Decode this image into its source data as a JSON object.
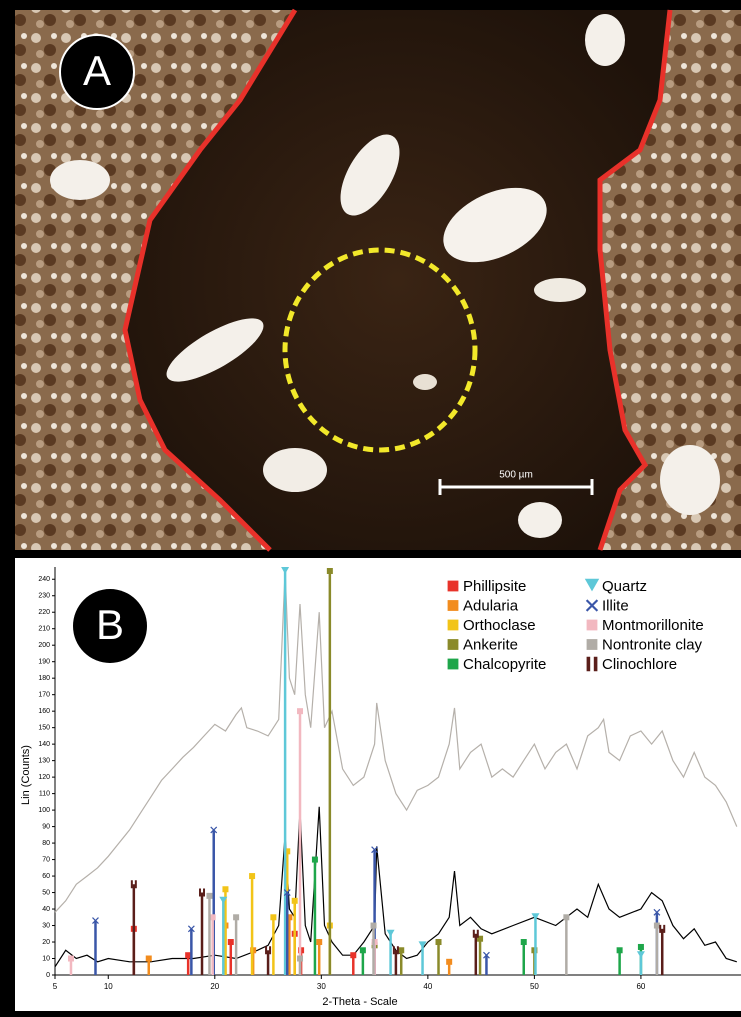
{
  "panels": [
    {
      "label": "A",
      "scale_bar": "500 µm"
    },
    {
      "label": "B"
    }
  ],
  "chart_data": {
    "type": "line",
    "x_label": "2-Theta - Scale",
    "y_label": "Lin (Counts)",
    "xlim": [
      5,
      69.3
    ],
    "ylim": [
      0,
      245
    ],
    "xticks": [
      5,
      10,
      20,
      30,
      40,
      50,
      60
    ],
    "yticks": [
      0,
      10,
      20,
      30,
      40,
      50,
      60,
      70,
      80,
      90,
      100,
      110,
      120,
      130,
      140,
      150,
      160,
      170,
      180,
      190,
      200,
      210,
      220,
      230,
      240
    ],
    "series": [
      {
        "color": "#b5b0aa",
        "x": [
          5,
          6,
          7,
          8,
          9,
          10,
          11,
          12,
          13,
          14,
          15,
          16,
          17,
          18,
          19,
          20,
          21,
          22,
          22.5,
          23,
          24,
          25,
          26,
          26.6,
          27,
          27.5,
          28,
          28.5,
          29,
          29.8,
          30.3,
          31,
          32,
          33,
          34,
          35,
          35.2,
          36,
          37,
          38,
          39,
          40,
          41,
          42,
          42.5,
          43,
          44,
          45,
          46,
          47,
          48,
          49,
          50,
          51,
          52,
          53,
          54,
          55,
          56,
          56.5,
          57,
          58,
          59,
          60,
          61,
          62,
          63,
          64,
          65,
          66,
          67,
          68,
          69
        ],
        "values": [
          38,
          45,
          55,
          60,
          65,
          72,
          80,
          88,
          98,
          108,
          118,
          125,
          132,
          138,
          145,
          152,
          148,
          158,
          162,
          150,
          148,
          145,
          155,
          245,
          180,
          170,
          225,
          170,
          150,
          220,
          150,
          160,
          125,
          115,
          120,
          140,
          165,
          130,
          110,
          100,
          112,
          115,
          120,
          140,
          162,
          125,
          135,
          140,
          120,
          125,
          120,
          130,
          140,
          125,
          135,
          140,
          125,
          145,
          150,
          155,
          135,
          130,
          145,
          148,
          140,
          148,
          130,
          120,
          135,
          120,
          115,
          105,
          90
        ]
      },
      {
        "color": "#000000",
        "x": [
          5,
          6,
          7,
          8,
          9,
          10,
          12,
          14,
          16,
          18,
          20,
          22,
          24,
          25,
          26,
          26.6,
          27,
          27.5,
          28,
          28.5,
          29,
          29.8,
          30.3,
          31,
          32,
          33,
          34,
          35,
          35.2,
          36,
          37,
          38,
          39,
          40,
          41,
          42,
          42.5,
          43,
          44,
          45,
          46,
          48,
          50,
          52,
          54,
          55,
          56,
          57,
          58,
          60,
          61,
          62,
          63,
          64,
          65,
          66,
          67,
          68,
          69
        ],
        "values": [
          5,
          15,
          10,
          12,
          8,
          10,
          8,
          8,
          10,
          10,
          12,
          10,
          15,
          18,
          30,
          85,
          40,
          35,
          100,
          30,
          20,
          102,
          30,
          20,
          12,
          12,
          20,
          30,
          78,
          25,
          15,
          10,
          12,
          20,
          25,
          35,
          63,
          30,
          35,
          28,
          25,
          30,
          35,
          30,
          40,
          35,
          55,
          40,
          35,
          40,
          50,
          45,
          30,
          22,
          28,
          18,
          20,
          10,
          8
        ]
      }
    ],
    "phases": [
      {
        "name": "Phillipsite",
        "color": "#e8332a",
        "marker": "square",
        "x": [
          12.4,
          17.5,
          21.5,
          27.5,
          28.1,
          33
        ],
        "values": [
          28,
          12,
          20,
          25,
          15,
          12
        ]
      },
      {
        "name": "Adularia",
        "color": "#f28c1e",
        "marker": "square",
        "x": [
          13.8,
          21,
          23.6,
          27,
          29.8,
          42
        ],
        "values": [
          10,
          30,
          15,
          35,
          20,
          8
        ]
      },
      {
        "name": "Orthoclase",
        "color": "#f2c418",
        "marker": "square",
        "x": [
          21,
          23.5,
          25.5,
          26.8,
          27.5,
          30.8
        ],
        "values": [
          52,
          60,
          35,
          75,
          45,
          30
        ]
      },
      {
        "name": "Ankerite",
        "color": "#8a8a2a",
        "marker": "square",
        "x": [
          30.8,
          35,
          37.5,
          41,
          44.9,
          50
        ],
        "values": [
          245,
          18,
          15,
          20,
          22,
          15
        ]
      },
      {
        "name": "Chalcopyrite",
        "color": "#1ea64a",
        "marker": "square",
        "x": [
          29.4,
          33.9,
          49,
          58,
          60
        ],
        "values": [
          70,
          15,
          20,
          15,
          17
        ]
      },
      {
        "name": "Quartz",
        "color": "#5ec8d8",
        "marker": "triangle",
        "x": [
          20.8,
          26.6,
          36.5,
          39.5,
          50.1,
          60
        ],
        "values": [
          45,
          245,
          25,
          18,
          35,
          12
        ]
      },
      {
        "name": "Illite",
        "color": "#3a56a8",
        "marker": "cross",
        "x": [
          8.8,
          17.8,
          19.9,
          26.8,
          35,
          45.5,
          61.5
        ],
        "values": [
          33,
          28,
          88,
          50,
          76,
          12,
          38
        ]
      },
      {
        "name": "Montmorillonite",
        "color": "#f2b8c0",
        "marker": "square",
        "x": [
          6.5,
          19.8,
          28,
          35
        ],
        "values": [
          10,
          35,
          160,
          20
        ]
      },
      {
        "name": "Nontronite clay",
        "color": "#b0aca6",
        "marker": "square",
        "x": [
          19.5,
          22,
          28,
          34.9,
          53,
          61.5
        ],
        "values": [
          48,
          35,
          10,
          30,
          35,
          30
        ]
      },
      {
        "name": "Clinochlore",
        "color": "#5a1e1a",
        "marker": "bars",
        "x": [
          12.4,
          18.8,
          25,
          37,
          44.5,
          62
        ],
        "values": [
          55,
          50,
          15,
          15,
          25,
          28
        ]
      }
    ]
  }
}
